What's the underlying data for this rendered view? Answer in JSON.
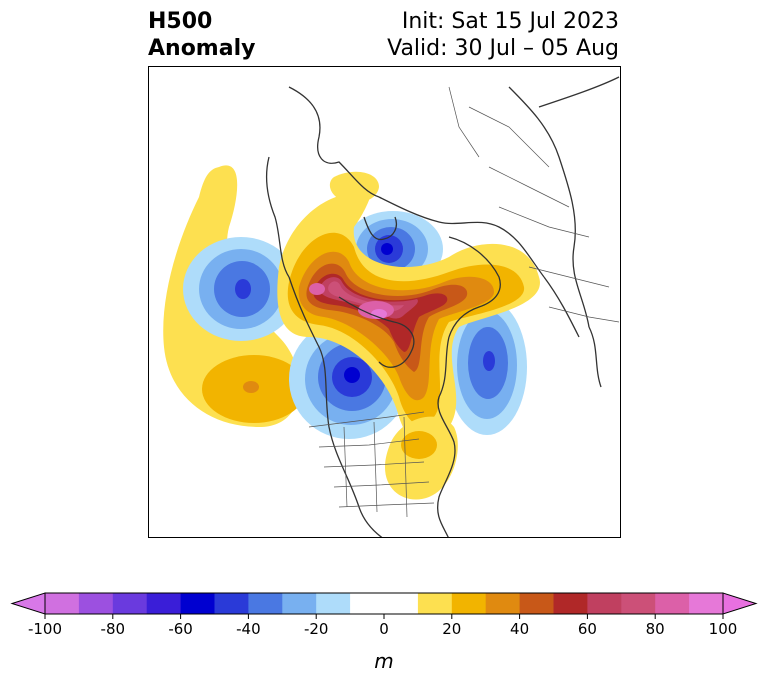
{
  "header": {
    "title_line1": "H500",
    "title_line2": "Anomaly",
    "init_text": "Init: Sat 15 Jul 2023",
    "valid_text": "Valid: 30 Jul – 05 Aug"
  },
  "colorbar": {
    "unit": "m",
    "tick_labels": [
      "-100",
      "-80",
      "-60",
      "-40",
      "-20",
      "0",
      "20",
      "40",
      "60",
      "80",
      "100"
    ],
    "range": [
      -100,
      100
    ],
    "extend": "both",
    "bin_colors": [
      "#d070e0",
      "#9c50e0",
      "#6a3ade",
      "#3a1ed8",
      "#0000d0",
      "#2a3ad8",
      "#4a78e2",
      "#78b0f0",
      "#aedcfa",
      "#ffffff",
      "#ffffff",
      "#fde050",
      "#f2b400",
      "#e08a10",
      "#c85818",
      "#b02828",
      "#c04060",
      "#cc5078",
      "#dc60a8",
      "#e678d8"
    ],
    "under_color": "#d878e8",
    "over_color": "#e870e0"
  },
  "map": {
    "projection": "polar stereographic",
    "features": [
      "coastlines",
      "country-borders",
      "state-borders"
    ]
  }
}
